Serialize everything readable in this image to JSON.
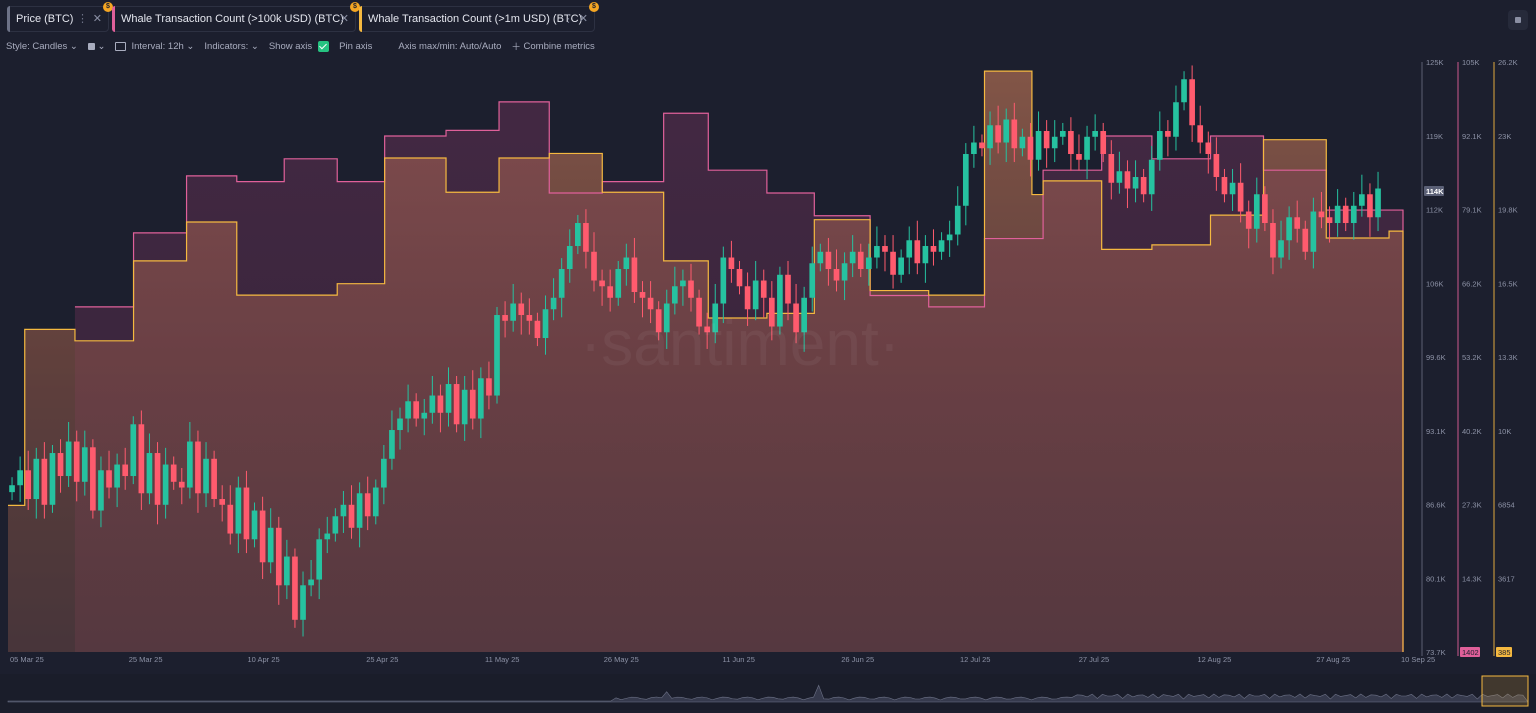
{
  "tabs": [
    {
      "label": "Price (BTC)",
      "color": "#6d7287"
    },
    {
      "label": "Whale Transaction Count (>100k USD) (BTC)",
      "color": "#e0609a"
    },
    {
      "label": "Whale Transaction Count (>1m USD) (BTC)",
      "color": "#f5b940"
    }
  ],
  "toolbar": {
    "style": "Style: Candles",
    "interval": "Interval: 12h",
    "indicators": "Indicators:",
    "show_axis": "Show axis",
    "pin_axis": "Pin axis",
    "axis_minmax": "Axis max/min: Auto/Auto",
    "combine": "Combine metrics"
  },
  "watermark": "·santiment·",
  "chart_data": {
    "type": "line",
    "x_labels": [
      "05 Mar 25",
      "25 Mar 25",
      "10 Apr 25",
      "25 Apr 25",
      "11 May 25",
      "26 May 25",
      "11 Jun 25",
      "26 Jun 25",
      "12 Jul 25",
      "27 Jul 25",
      "12 Aug 25",
      "27 Aug 25",
      "10 Sep 25"
    ],
    "axes": [
      {
        "name": "price",
        "ticks": [
          "125K",
          "119K",
          "112K",
          "106K",
          "99.6K",
          "93.1K",
          "86.6K",
          "80.1K",
          "73.7K"
        ],
        "range": [
          73700,
          125000
        ],
        "current": "114K",
        "color": "#9aa0b4"
      },
      {
        "name": "whale_100k",
        "ticks": [
          "105K",
          "92.1K",
          "79.1K",
          "66.2K",
          "53.2K",
          "40.2K",
          "27.3K",
          "14.3K"
        ],
        "range": [
          1400,
          105000
        ],
        "current": "1402",
        "color": "#e0609a"
      },
      {
        "name": "whale_1m",
        "ticks": [
          "26.2K",
          "23K",
          "19.8K",
          "16.5K",
          "13.3K",
          "10K",
          "6854",
          "3617"
        ],
        "range": [
          385,
          26200
        ],
        "current": "385",
        "color": "#f5b940"
      }
    ],
    "series": [
      {
        "name": "Whale Transaction Count (>100k USD) (BTC)",
        "color": "#e0609a",
        "steps": [
          [
            0,
            null
          ],
          [
            0.048,
            62000
          ],
          [
            0.09,
            75000
          ],
          [
            0.128,
            85000
          ],
          [
            0.164,
            84000
          ],
          [
            0.198,
            88000
          ],
          [
            0.236,
            84000
          ],
          [
            0.27,
            92000
          ],
          [
            0.314,
            93000
          ],
          [
            0.352,
            98000
          ],
          [
            0.388,
            82000
          ],
          [
            0.426,
            84000
          ],
          [
            0.47,
            96000
          ],
          [
            0.502,
            86000
          ],
          [
            0.544,
            82000
          ],
          [
            0.578,
            78000
          ],
          [
            0.618,
            64000
          ],
          [
            0.66,
            62000
          ],
          [
            0.7,
            74000
          ],
          [
            0.742,
            86000
          ],
          [
            0.784,
            92000
          ],
          [
            0.82,
            88000
          ],
          [
            0.862,
            92000
          ],
          [
            0.9,
            86000
          ],
          [
            0.945,
            79000
          ],
          [
            1.0,
            1402
          ]
        ]
      },
      {
        "name": "Whale Transaction Count (>1m USD) (BTC)",
        "color": "#f5b940",
        "steps": [
          [
            0,
            6800
          ],
          [
            0.012,
            14500
          ],
          [
            0.048,
            14000
          ],
          [
            0.09,
            17500
          ],
          [
            0.128,
            19200
          ],
          [
            0.164,
            16000
          ],
          [
            0.198,
            16000
          ],
          [
            0.236,
            16500
          ],
          [
            0.27,
            22000
          ],
          [
            0.314,
            20500
          ],
          [
            0.352,
            22000
          ],
          [
            0.388,
            22200
          ],
          [
            0.426,
            20500
          ],
          [
            0.47,
            17500
          ],
          [
            0.502,
            15000
          ],
          [
            0.544,
            15200
          ],
          [
            0.578,
            19300
          ],
          [
            0.618,
            16200
          ],
          [
            0.66,
            16000
          ],
          [
            0.7,
            25800
          ],
          [
            0.734,
            20400
          ],
          [
            0.742,
            21000
          ],
          [
            0.784,
            18000
          ],
          [
            0.82,
            18200
          ],
          [
            0.862,
            19500
          ],
          [
            0.9,
            22800
          ],
          [
            0.945,
            18500
          ],
          [
            0.99,
            18800
          ],
          [
            1.0,
            385
          ]
        ]
      },
      {
        "name": "Price (BTC)",
        "type": "candles",
        "closes": [
          88200,
          89500,
          87000,
          90500,
          86500,
          91000,
          89000,
          92000,
          88500,
          91500,
          86000,
          89500,
          88000,
          90000,
          89000,
          93500,
          87500,
          91000,
          86500,
          90000,
          88500,
          88000,
          92000,
          87500,
          90500,
          87000,
          86500,
          84000,
          88000,
          83500,
          86000,
          81500,
          84500,
          79500,
          82000,
          76500,
          79500,
          80000,
          83500,
          84000,
          85500,
          86500,
          84500,
          87500,
          85500,
          88000,
          90500,
          93000,
          94000,
          95500,
          94000,
          94500,
          96000,
          94500,
          97000,
          93500,
          96500,
          94000,
          97500,
          96000,
          103000,
          102500,
          104000,
          103000,
          102500,
          101000,
          103500,
          104500,
          107000,
          109000,
          111000,
          108500,
          106000,
          105500,
          104500,
          107000,
          108000,
          105000,
          104500,
          103500,
          101500,
          104000,
          105500,
          106000,
          104500,
          102000,
          101500,
          104000,
          108000,
          107000,
          105500,
          103500,
          106000,
          104500,
          102000,
          106500,
          104000,
          101500,
          104500,
          107500,
          108500,
          107000,
          106000,
          107500,
          108500,
          107000,
          108000,
          109000,
          108500,
          106500,
          108000,
          109500,
          107500,
          109000,
          108500,
          109500,
          110000,
          112500,
          117000,
          118000,
          117500,
          119500,
          118000,
          120000,
          117500,
          118500,
          116500,
          119000,
          117500,
          118500,
          119000,
          117000,
          116500,
          118500,
          119000,
          117000,
          114500,
          115500,
          114000,
          115000,
          113500,
          116500,
          119000,
          118500,
          121500,
          123500,
          119500,
          118000,
          117000,
          115000,
          113500,
          114500,
          112000,
          110500,
          113500,
          111000,
          108000,
          109500,
          111500,
          110500,
          108500,
          112000,
          111500,
          111000,
          112500,
          111000,
          112500,
          113500,
          111500,
          114000
        ]
      },
      {
        "name": "chart_labels",
        "badge_price": "114K",
        "badge_100k": "1402",
        "badge_1m": "385"
      }
    ],
    "grid": false,
    "legend": "top-left"
  }
}
